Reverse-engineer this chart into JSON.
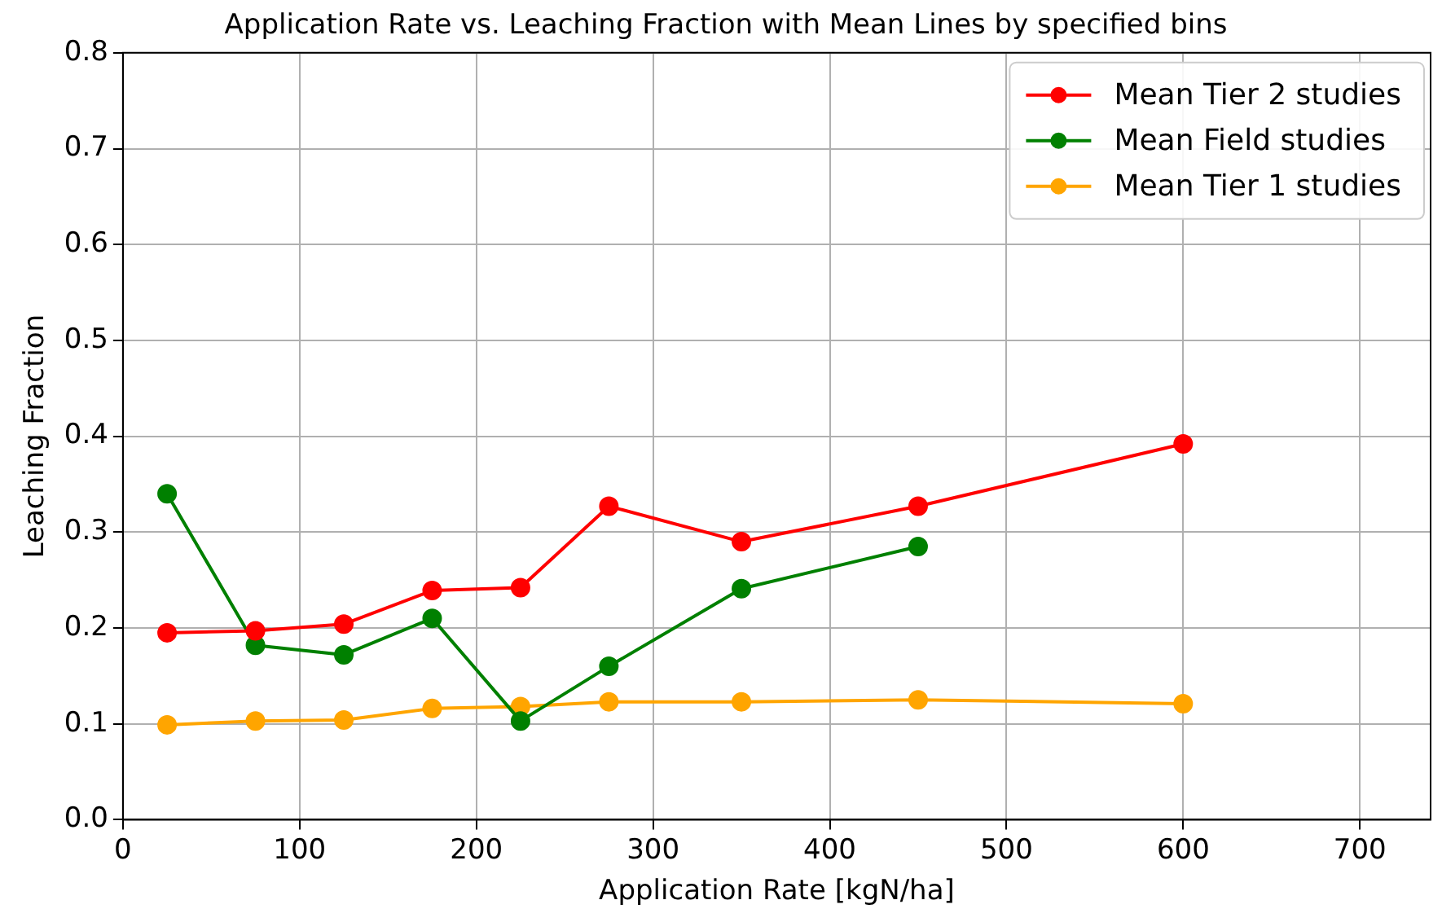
{
  "chart_data": {
    "type": "line",
    "title": "Application Rate vs. Leaching Fraction with Mean Lines by specified bins",
    "xlabel": "Application Rate [kgN/ha]",
    "ylabel": "Leaching Fraction",
    "x": [
      25,
      75,
      125,
      175,
      225,
      275,
      350,
      450,
      600
    ],
    "series": [
      {
        "name": "Mean Tier 2 studies",
        "color": "#ff0000",
        "values": [
          0.195,
          0.197,
          0.204,
          0.239,
          0.242,
          0.327,
          0.29,
          0.327,
          0.392
        ]
      },
      {
        "name": "Mean Field studies",
        "color": "#008000",
        "x": [
          25,
          75,
          125,
          175,
          225,
          275,
          350,
          450
        ],
        "values": [
          0.34,
          0.182,
          0.172,
          0.21,
          0.103,
          0.16,
          0.241,
          0.285
        ]
      },
      {
        "name": "Mean Tier 1 studies",
        "color": "#ffa500",
        "values": [
          0.099,
          0.103,
          0.104,
          0.116,
          0.118,
          0.123,
          0.123,
          0.125,
          0.121
        ]
      }
    ],
    "xlim": [
      0,
      740
    ],
    "xticks": [
      0,
      100,
      200,
      300,
      400,
      500,
      600,
      700
    ],
    "ylim": [
      0,
      0.8
    ],
    "yticks": [
      {
        "value": 0,
        "label": "0.0"
      },
      {
        "value": 0.1,
        "label": "0.1"
      },
      {
        "value": 0.2,
        "label": "0.2"
      },
      {
        "value": 0.3,
        "label": "0.3"
      },
      {
        "value": 0.4,
        "label": "0.4"
      },
      {
        "value": 0.5,
        "label": "0.5"
      },
      {
        "value": 0.6,
        "label": "0.6"
      },
      {
        "value": 0.7,
        "label": "0.7"
      },
      {
        "value": 0.8,
        "label": "0.8"
      }
    ],
    "grid": true,
    "legend": "top right",
    "marker": "circle",
    "line_style": "solid"
  }
}
